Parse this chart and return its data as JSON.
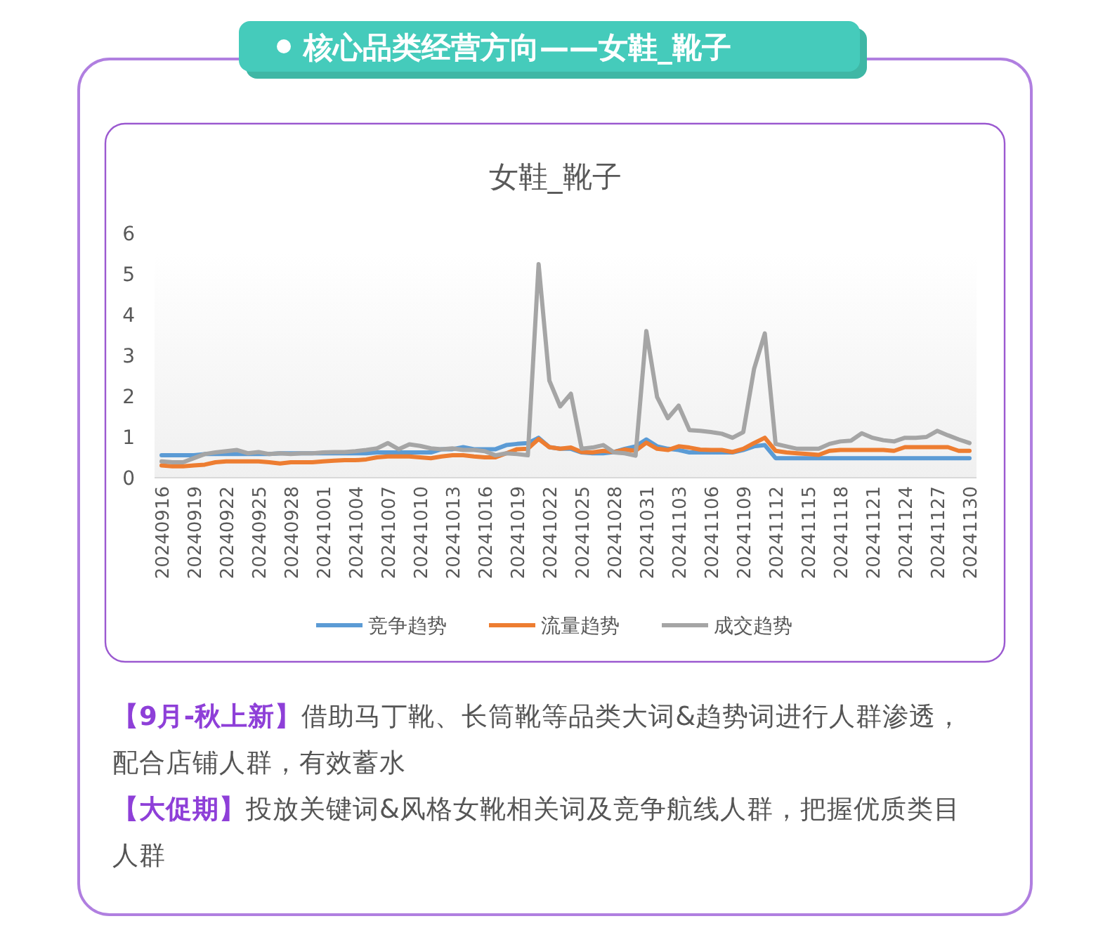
{
  "chart_data": {
    "type": "line",
    "title": "女鞋_靴子",
    "annotations": [
      "核心品类经营方向——女鞋_靴子",
      "【9月-秋上新】借助马丁靴、长筒靴等品类大词&趋势词进行人群渗透，配合店铺人群，有效蓄水",
      "【大促期】投放关键词&风格女靴相关词及竞争航线人群，把握优质类目人群"
    ],
    "categories": [
      "20240916",
      null,
      null,
      "20240919",
      null,
      null,
      "20240922",
      null,
      null,
      "20240925",
      null,
      null,
      "20240928",
      null,
      null,
      "20241001",
      null,
      null,
      "20241004",
      null,
      null,
      "20241007",
      null,
      null,
      "20241010",
      null,
      null,
      "20241013",
      null,
      null,
      "20241016",
      null,
      null,
      "20241019",
      null,
      null,
      "20241022",
      null,
      null,
      "20241025",
      null,
      null,
      "20241028",
      null,
      null,
      "20241031",
      null,
      null,
      "20241103",
      null,
      null,
      "20241106",
      null,
      null,
      "20241109",
      null,
      null,
      "20241112",
      null,
      null,
      "20241115",
      null,
      null,
      "20241118",
      null,
      null,
      "20241121",
      null,
      null,
      "20241124",
      null,
      null,
      "20241127",
      null,
      null,
      "20241130"
    ],
    "series": [
      {
        "name": "竞争趋势",
        "color": "#5b9bd5",
        "values": [
          0.55,
          0.55,
          0.55,
          0.55,
          0.58,
          0.58,
          0.58,
          0.58,
          0.58,
          0.58,
          0.58,
          0.6,
          0.6,
          0.6,
          0.6,
          0.6,
          0.6,
          0.6,
          0.6,
          0.6,
          0.62,
          0.62,
          0.62,
          0.62,
          0.62,
          0.62,
          0.7,
          0.7,
          0.75,
          0.7,
          0.7,
          0.7,
          0.8,
          0.83,
          0.85,
          0.98,
          0.75,
          0.71,
          0.71,
          0.62,
          0.6,
          0.6,
          0.63,
          0.71,
          0.77,
          0.94,
          0.77,
          0.71,
          0.68,
          0.62,
          0.62,
          0.62,
          0.62,
          0.62,
          0.68,
          0.77,
          0.8,
          0.48,
          0.48,
          0.48,
          0.48,
          0.48,
          0.48,
          0.48,
          0.48,
          0.48,
          0.48,
          0.48,
          0.48,
          0.48,
          0.48,
          0.48,
          0.48,
          0.48,
          0.48,
          0.48
        ]
      },
      {
        "name": "流量趋势",
        "color": "#ed7d31",
        "values": [
          0.3,
          0.28,
          0.28,
          0.3,
          0.32,
          0.38,
          0.4,
          0.4,
          0.4,
          0.4,
          0.38,
          0.35,
          0.38,
          0.38,
          0.38,
          0.4,
          0.42,
          0.43,
          0.43,
          0.45,
          0.5,
          0.52,
          0.52,
          0.52,
          0.5,
          0.48,
          0.52,
          0.55,
          0.55,
          0.52,
          0.5,
          0.5,
          0.6,
          0.7,
          0.71,
          0.95,
          0.75,
          0.71,
          0.74,
          0.63,
          0.62,
          0.66,
          0.63,
          0.69,
          0.66,
          0.86,
          0.71,
          0.68,
          0.77,
          0.74,
          0.69,
          0.68,
          0.68,
          0.63,
          0.71,
          0.85,
          0.98,
          0.66,
          0.62,
          0.6,
          0.58,
          0.56,
          0.66,
          0.68,
          0.68,
          0.68,
          0.68,
          0.68,
          0.66,
          0.75,
          0.75,
          0.75,
          0.75,
          0.75,
          0.66,
          0.66
        ]
      },
      {
        "name": "成交趋势",
        "color": "#a5a5a5",
        "values": [
          0.4,
          0.38,
          0.38,
          0.48,
          0.58,
          0.62,
          0.65,
          0.68,
          0.6,
          0.63,
          0.58,
          0.6,
          0.58,
          0.6,
          0.6,
          0.62,
          0.63,
          0.63,
          0.65,
          0.68,
          0.72,
          0.85,
          0.7,
          0.82,
          0.78,
          0.72,
          0.7,
          0.72,
          0.68,
          0.68,
          0.65,
          0.55,
          0.6,
          0.58,
          0.55,
          5.24,
          2.38,
          1.75,
          2.06,
          0.71,
          0.74,
          0.8,
          0.62,
          0.6,
          0.54,
          3.6,
          1.98,
          1.46,
          1.77,
          1.17,
          1.15,
          1.12,
          1.08,
          0.98,
          1.12,
          2.67,
          3.54,
          0.83,
          0.77,
          0.71,
          0.71,
          0.71,
          0.83,
          0.89,
          0.91,
          1.09,
          0.98,
          0.92,
          0.89,
          0.98,
          0.98,
          1.0,
          1.15,
          1.04,
          0.94,
          0.85
        ]
      }
    ],
    "ylim": [
      0,
      6
    ],
    "yticks": [
      0,
      1,
      2,
      3,
      4,
      5,
      6
    ],
    "grid": false,
    "legend": "bottom",
    "marker": "none",
    "line_style": "solid"
  }
}
